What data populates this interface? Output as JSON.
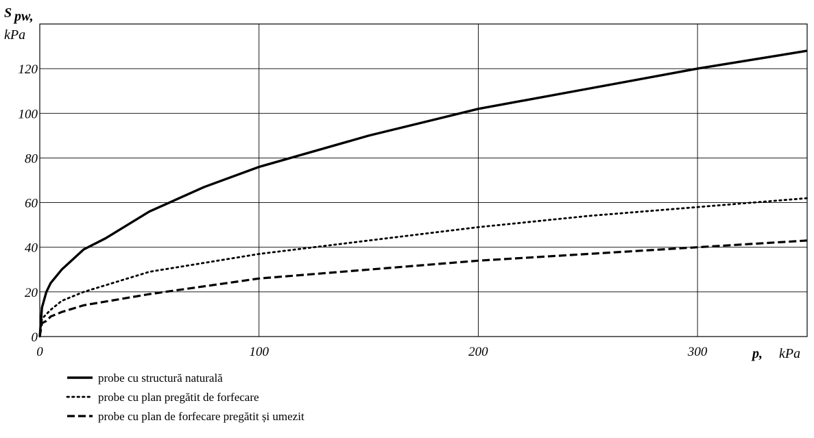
{
  "chart_data": {
    "type": "line",
    "title": "",
    "ylabel": "S",
    "ylabel_sub": "pw,",
    "ylabel_unit": "kPa",
    "xlabel": "p,",
    "xlabel_unit": "kPa",
    "xlim": [
      0,
      350
    ],
    "ylim": [
      0,
      140
    ],
    "xticks": [
      0,
      100,
      200,
      300
    ],
    "yticks": [
      0,
      20,
      40,
      60,
      80,
      100,
      120
    ],
    "grid": true,
    "legend_position": "bottom-left",
    "series": [
      {
        "name": "probe cu structură naturală",
        "style": "solid",
        "color": "#000000",
        "x": [
          0,
          1,
          3,
          5,
          10,
          20,
          30,
          50,
          75,
          100,
          150,
          200,
          250,
          300,
          350
        ],
        "y": [
          0,
          13,
          20,
          24,
          30,
          39,
          44,
          56,
          67,
          76,
          90,
          102,
          111,
          120,
          128
        ]
      },
      {
        "name": "probe cu plan pregătit de forfecare",
        "style": "dotted",
        "color": "#000000",
        "x": [
          0,
          1,
          3,
          5,
          10,
          20,
          50,
          100,
          150,
          200,
          250,
          300,
          350
        ],
        "y": [
          0,
          8,
          10,
          12,
          16,
          20,
          29,
          37,
          43,
          49,
          54,
          58,
          62
        ]
      },
      {
        "name": "probe cu plan de forfecare pregătit și umezit",
        "style": "dashed",
        "color": "#000000",
        "x": [
          0,
          1,
          3,
          5,
          10,
          20,
          50,
          100,
          150,
          200,
          250,
          300,
          350
        ],
        "y": [
          0,
          6,
          7,
          9,
          11,
          14,
          19,
          26,
          30,
          34,
          37,
          40,
          43
        ]
      }
    ]
  }
}
